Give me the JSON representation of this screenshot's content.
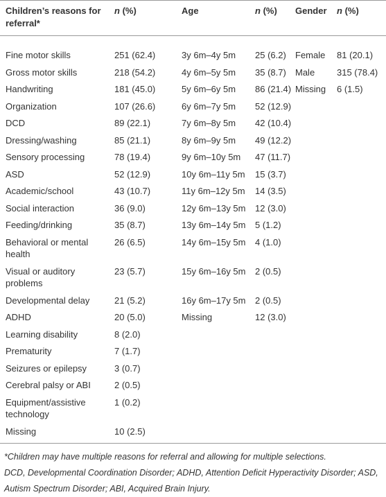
{
  "table": {
    "headers": [
      {
        "text": "Children’s reasons for referral*"
      },
      {
        "n": "n",
        "rest": "(%)"
      },
      {
        "text": "Age"
      },
      {
        "n": "n",
        "rest": "(%)"
      },
      {
        "text": "Gender"
      },
      {
        "n": "n",
        "rest": "(%)"
      }
    ],
    "reasons": [
      [
        "Fine motor skills",
        "251 (62.4)"
      ],
      [
        "Gross motor skills",
        "218 (54.2)"
      ],
      [
        "Handwriting",
        "181 (45.0)"
      ],
      [
        "Organization",
        "107 (26.6)"
      ],
      [
        "DCD",
        "89 (22.1)"
      ],
      [
        "Dressing/washing",
        "85 (21.1)"
      ],
      [
        "Sensory processing",
        "78 (19.4)"
      ],
      [
        "ASD",
        "52 (12.9)"
      ],
      [
        "Academic/school",
        "43 (10.7)"
      ],
      [
        "Social interaction",
        "36 (9.0)"
      ],
      [
        "Feeding/drinking",
        "35 (8.7)"
      ],
      [
        "Behavioral or mental health",
        "26 (6.5)"
      ],
      [
        "Visual or auditory problems",
        "23 (5.7)"
      ],
      [
        "Developmental delay",
        "21 (5.2)"
      ],
      [
        "ADHD",
        "20 (5.0)"
      ],
      [
        "Learning disability",
        "8 (2.0)"
      ],
      [
        "Prematurity",
        "7 (1.7)"
      ],
      [
        "Seizures or epilepsy",
        "3 (0.7)"
      ],
      [
        "Cerebral palsy or ABI",
        "2 (0.5)"
      ],
      [
        "Equipment/assistive technology",
        "1 (0.2)"
      ],
      [
        "Missing",
        "10 (2.5)"
      ]
    ],
    "ages": [
      [
        "3y 6m–4y 5m",
        "25 (6.2)"
      ],
      [
        "4y 6m–5y 5m",
        "35 (8.7)"
      ],
      [
        "5y 6m–6y 5m",
        "86 (21.4)"
      ],
      [
        "6y 6m–7y 5m",
        "52 (12.9)"
      ],
      [
        "7y 6m–8y 5m",
        "42 (10.4)"
      ],
      [
        "8y 6m–9y 5m",
        "49 (12.2)"
      ],
      [
        "9y 6m–10y 5m",
        "47 (11.7)"
      ],
      [
        "10y 6m–11y 5m",
        "15 (3.7)"
      ],
      [
        "11y 6m–12y 5m",
        "14 (3.5)"
      ],
      [
        "12y 6m–13y 5m",
        "12 (3.0)"
      ],
      [
        "13y 6m–14y 5m",
        "5 (1.2)"
      ],
      [
        "14y 6m–15y 5m",
        "4 (1.0)"
      ],
      [
        "15y 6m–16y 5m",
        "2 (0.5)"
      ],
      [
        "16y 6m–17y 5m",
        "2 (0.5)"
      ],
      [
        "Missing",
        "12 (3.0)"
      ]
    ],
    "genders": [
      [
        "Female",
        "81 (20.1)"
      ],
      [
        "Male",
        "315 (78.4)"
      ],
      [
        "Missing",
        "6 (1.5)"
      ]
    ]
  },
  "footnotes": [
    "*Children may have multiple reasons for referral and allowing for multiple selections.",
    "DCD, Developmental Coordination Disorder; ADHD, Attention Deficit Hyperactivity Disorder; ASD, Autism Spectrum Disorder; ABI, Acquired Brain Injury."
  ]
}
